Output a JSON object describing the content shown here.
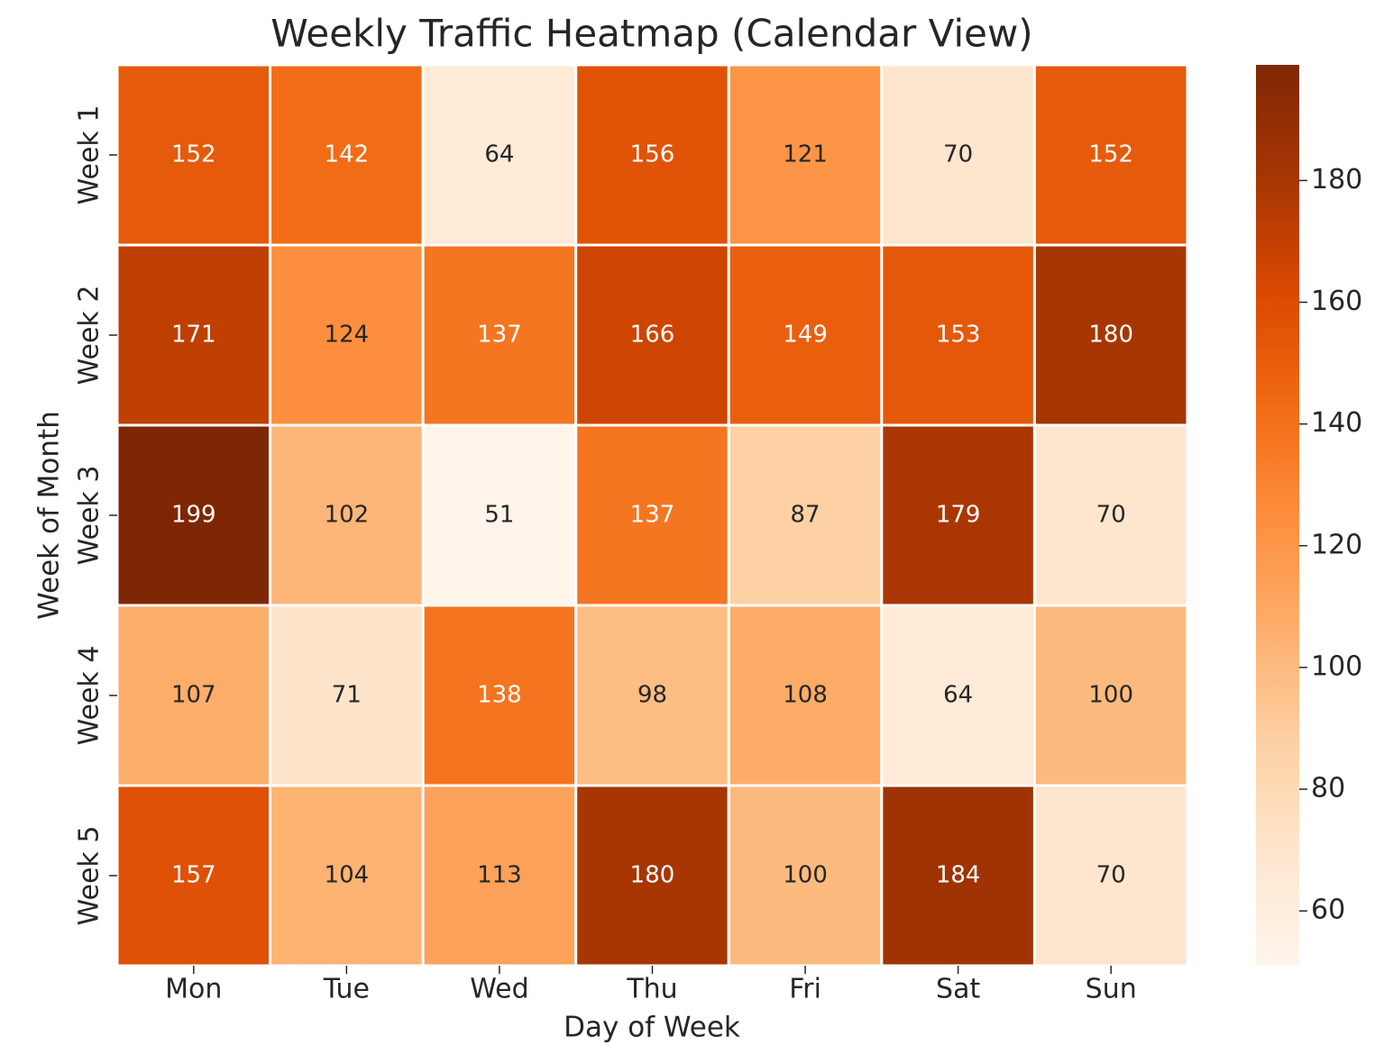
{
  "chart_data": {
    "type": "heatmap",
    "title": "Weekly Traffic Heatmap (Calendar View)",
    "xlabel": "Day of Week",
    "ylabel": "Week of Month",
    "x": [
      "Mon",
      "Tue",
      "Wed",
      "Thu",
      "Fri",
      "Sat",
      "Sun"
    ],
    "y": [
      "Week 1",
      "Week 2",
      "Week 3",
      "Week 4",
      "Week 5"
    ],
    "values": [
      [
        152,
        142,
        64,
        156,
        121,
        70,
        152
      ],
      [
        171,
        124,
        137,
        166,
        149,
        153,
        180
      ],
      [
        199,
        102,
        51,
        137,
        87,
        179,
        70
      ],
      [
        107,
        71,
        138,
        98,
        108,
        64,
        100
      ],
      [
        157,
        104,
        113,
        180,
        100,
        184,
        70
      ]
    ],
    "colorbar_lim": [
      51,
      199
    ],
    "colorbar_ticks": [
      60,
      80,
      100,
      120,
      140,
      160,
      180
    ],
    "colormap": [
      "#fff5eb",
      "#fee6ce",
      "#fdd0a2",
      "#fdae6b",
      "#fd8d3c",
      "#f16913",
      "#d94801",
      "#a63603",
      "#7f2704"
    ]
  }
}
